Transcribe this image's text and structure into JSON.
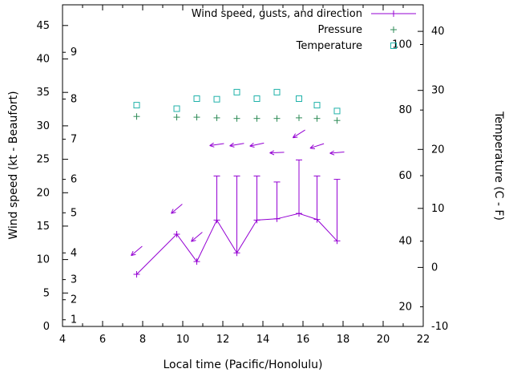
{
  "chart_data": {
    "type": "line",
    "title": "",
    "xlabel": "Local time (Pacific/Honolulu)",
    "ylabel_left": "Wind speed (kt - Beaufort)",
    "ylabel_right": "Temperature (C - F)",
    "x_range": [
      4,
      22
    ],
    "x_major_ticks": [
      4,
      6,
      8,
      10,
      12,
      14,
      16,
      18,
      20,
      22
    ],
    "x_minor_step": 1,
    "left_axis": {
      "unit": "kt",
      "range": [
        0,
        48.1
      ],
      "ticks": [
        0,
        5,
        10,
        15,
        20,
        25,
        30,
        35,
        40,
        45
      ],
      "beaufort_labels": [
        {
          "label": "1",
          "kt": 1
        },
        {
          "label": "2",
          "kt": 4
        },
        {
          "label": "3",
          "kt": 7
        },
        {
          "label": "4",
          "kt": 11
        },
        {
          "label": "5",
          "kt": 17
        },
        {
          "label": "6",
          "kt": 22
        },
        {
          "label": "7",
          "kt": 28
        },
        {
          "label": "8",
          "kt": 34
        },
        {
          "label": "9",
          "kt": 41
        }
      ]
    },
    "right_axis": {
      "unit": "C",
      "range": [
        -10,
        44.5
      ],
      "ticks_c": [
        -10,
        0,
        10,
        20,
        30,
        40
      ],
      "fahrenheit_labels": [
        20,
        40,
        60,
        80,
        100
      ]
    },
    "legend": [
      {
        "label": "Wind speed, gusts, and direction",
        "series": "wind"
      },
      {
        "label": "Pressure",
        "series": "pressure"
      },
      {
        "label": "Temperature",
        "series": "temperature"
      }
    ],
    "series": {
      "wind": {
        "color": "#9400d3",
        "marker": "plus-with-line",
        "points": [
          {
            "t": 7.7,
            "speed_kt": 7.8,
            "gust_kt": null,
            "arrow_kt": 11.3,
            "arrow_deg": 140
          },
          {
            "t": 9.7,
            "speed_kt": 13.8,
            "gust_kt": null,
            "arrow_kt": 17.6,
            "arrow_deg": 140
          },
          {
            "t": 10.7,
            "speed_kt": 9.7,
            "gust_kt": null,
            "arrow_kt": 13.4,
            "arrow_deg": 140
          },
          {
            "t": 11.7,
            "speed_kt": 15.9,
            "gust_kt": 22.5,
            "arrow_kt": 27.2,
            "arrow_deg": 172
          },
          {
            "t": 12.7,
            "speed_kt": 11.0,
            "gust_kt": 22.5,
            "arrow_kt": 27.2,
            "arrow_deg": 170
          },
          {
            "t": 13.7,
            "speed_kt": 15.9,
            "gust_kt": 22.5,
            "arrow_kt": 27.2,
            "arrow_deg": 168
          },
          {
            "t": 14.7,
            "speed_kt": 16.1,
            "gust_kt": 21.6,
            "arrow_kt": 26.0,
            "arrow_deg": 178
          },
          {
            "t": 15.8,
            "speed_kt": 16.9,
            "gust_kt": 24.9,
            "arrow_kt": 28.8,
            "arrow_deg": 148
          },
          {
            "t": 16.7,
            "speed_kt": 16.0,
            "gust_kt": 22.5,
            "arrow_kt": 27.0,
            "arrow_deg": 162
          },
          {
            "t": 17.7,
            "speed_kt": 12.8,
            "gust_kt": 22.0,
            "arrow_kt": 26.0,
            "arrow_deg": 175
          }
        ]
      },
      "pressure": {
        "color": "#2e8b57",
        "marker": "plus",
        "points": [
          {
            "t": 7.7,
            "y_left_axis": 31.4
          },
          {
            "t": 9.7,
            "y_left_axis": 31.3
          },
          {
            "t": 10.7,
            "y_left_axis": 31.3
          },
          {
            "t": 11.7,
            "y_left_axis": 31.2
          },
          {
            "t": 12.7,
            "y_left_axis": 31.1
          },
          {
            "t": 13.7,
            "y_left_axis": 31.1
          },
          {
            "t": 14.7,
            "y_left_axis": 31.1
          },
          {
            "t": 15.8,
            "y_left_axis": 31.2
          },
          {
            "t": 16.7,
            "y_left_axis": 31.1
          },
          {
            "t": 17.7,
            "y_left_axis": 30.8
          }
        ]
      },
      "temperature": {
        "color": "#20b2aa",
        "marker": "open-square",
        "points": [
          {
            "t": 7.7,
            "c": 27.5
          },
          {
            "t": 9.7,
            "c": 26.9
          },
          {
            "t": 10.7,
            "c": 28.6
          },
          {
            "t": 11.7,
            "c": 28.5
          },
          {
            "t": 12.7,
            "c": 29.7
          },
          {
            "t": 13.7,
            "c": 28.6
          },
          {
            "t": 14.7,
            "c": 29.7
          },
          {
            "t": 15.8,
            "c": 28.6
          },
          {
            "t": 16.7,
            "c": 27.5
          },
          {
            "t": 17.7,
            "c": 26.5
          }
        ]
      }
    }
  }
}
